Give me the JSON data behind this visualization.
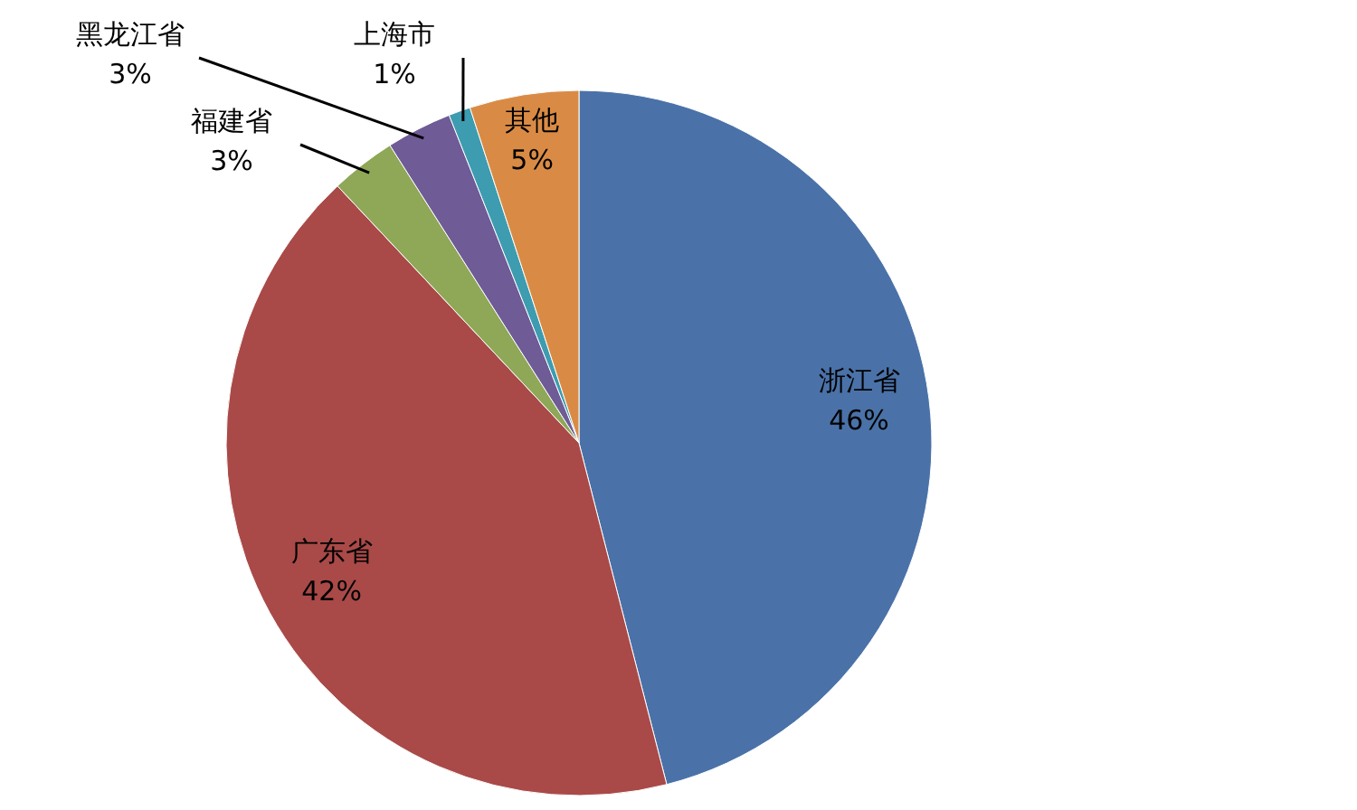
{
  "chart_data": {
    "type": "pie",
    "categories": [
      "浙江省",
      "广东省",
      "福建省",
      "黑龙江省",
      "上海市",
      "其他"
    ],
    "values": [
      46,
      42,
      3,
      3,
      1,
      5
    ],
    "value_labels": [
      "46%",
      "42%",
      "3%",
      "3%",
      "1%",
      "5%"
    ],
    "colors": [
      "#4a72a8",
      "#a94a48",
      "#8ea857",
      "#6f5b96",
      "#3d9cb0",
      "#d98b45"
    ]
  }
}
